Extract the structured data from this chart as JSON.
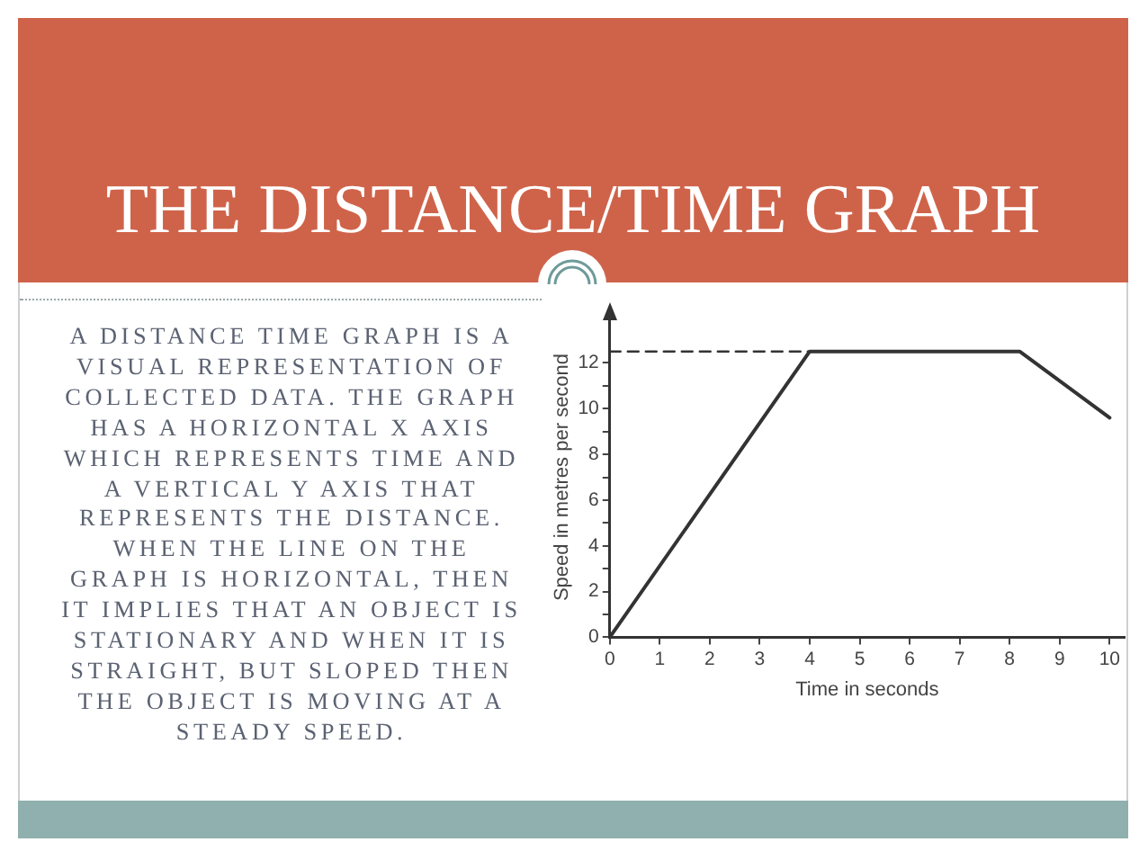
{
  "chart_data": {
    "type": "line",
    "title": "THE DISTANCE/TIME GRAPH",
    "xlabel": "Time in seconds",
    "ylabel": "Speed in metres per second",
    "annotations": [
      "A DISTANCE TIME GRAPH IS A\nVISUAL REPRESENTATION OF\nCOLLECTED DATA. THE GRAPH\nHAS A HORIZONTAL X AXIS\nWHICH REPRESENTS TIME AND\nA VERTICAL Y AXIS THAT\nREPRESENTS THE DISTANCE.\nWHEN THE LINE ON THE\nGRAPH IS HORIZONTAL, THEN\nIT IMPLIES THAT AN OBJECT IS\nSTATIONARY AND WHEN IT IS\nSTRAIGHT, BUT SLOPED THEN\nTHE OBJECT IS MOVING AT A\nSTEADY SPEED."
    ],
    "series": [
      {
        "color": "#333333",
        "x": [
          0,
          4,
          8.2,
          10
        ],
        "values": [
          0,
          12.5,
          12.5,
          9.6
        ]
      },
      {
        "color": "#333333",
        "x": [
          0,
          4
        ],
        "values": [
          12.5,
          12.5
        ],
        "line_style": "dashed"
      }
    ],
    "xlim": [
      0,
      10.3
    ],
    "xticks": [
      0,
      1,
      2,
      3,
      4,
      5,
      6,
      7,
      8,
      9,
      10
    ],
    "ylim": [
      0,
      14
    ],
    "yticks": [
      0,
      {
        "value": 1,
        "label": null
      },
      2,
      {
        "value": 3,
        "label": null
      },
      4,
      {
        "value": 5,
        "label": null
      },
      6,
      {
        "value": 7,
        "label": null
      },
      8,
      {
        "value": 9,
        "label": null
      },
      10,
      {
        "value": 11,
        "label": null
      },
      12
    ],
    "grid": false,
    "legend": false,
    "marker": "none",
    "line_style": "solid"
  }
}
